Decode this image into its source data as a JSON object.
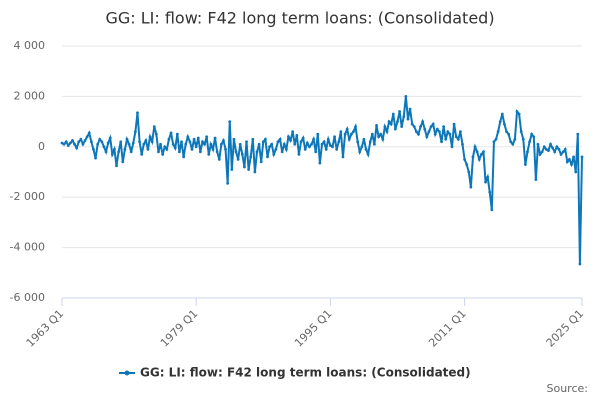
{
  "chart_data": {
    "type": "line",
    "title": "GG: LI: flow: F42 long term loans: (Consolidated)",
    "categories": [
      "1963 Q1",
      null,
      null,
      null,
      null,
      null,
      null,
      null,
      null,
      null,
      null,
      null,
      null,
      null,
      null,
      null,
      null,
      null,
      null,
      null,
      null,
      null,
      null,
      null,
      null,
      null,
      null,
      null,
      null,
      null,
      null,
      null,
      null,
      null,
      null,
      null,
      null,
      null,
      null,
      null,
      null,
      null,
      null,
      null,
      null,
      null,
      null,
      null,
      null,
      null,
      null,
      null,
      null,
      null,
      null,
      null,
      null,
      null,
      null,
      null,
      null,
      null,
      null,
      null,
      "1979 Q1",
      null,
      null,
      null,
      null,
      null,
      null,
      null,
      null,
      null,
      null,
      null,
      null,
      null,
      null,
      null,
      null,
      null,
      null,
      null,
      null,
      null,
      null,
      null,
      null,
      null,
      null,
      null,
      null,
      null,
      null,
      null,
      null,
      null,
      null,
      null,
      null,
      null,
      null,
      null,
      null,
      null,
      null,
      null,
      null,
      null,
      null,
      null,
      null,
      null,
      null,
      null,
      null,
      null,
      null,
      null,
      null,
      null,
      null,
      null,
      null,
      null,
      null,
      null,
      "1995 Q1",
      null,
      null,
      null,
      null,
      null,
      null,
      null,
      null,
      null,
      null,
      null,
      null,
      null,
      null,
      null,
      null,
      null,
      null,
      null,
      null,
      null,
      null,
      null,
      null,
      null,
      null,
      null,
      null,
      null,
      null,
      null,
      null,
      null,
      null,
      null,
      null,
      null,
      null,
      null,
      null,
      null,
      null,
      null,
      null,
      null,
      null,
      null,
      null,
      null,
      null,
      null,
      null,
      null,
      null,
      null,
      null,
      null,
      null,
      null,
      null,
      null,
      null,
      null,
      "2011 Q1",
      null,
      null,
      null,
      null,
      null,
      null,
      null,
      null,
      null,
      null,
      null,
      null,
      null,
      null,
      null,
      null,
      null,
      null,
      null,
      null,
      null,
      null,
      null,
      null,
      null,
      null,
      null,
      null,
      null,
      null,
      null,
      null,
      null,
      null,
      null,
      null,
      null,
      null,
      null,
      null,
      null,
      null,
      null,
      null,
      null,
      null,
      null,
      null,
      null,
      null,
      null,
      null,
      null,
      null,
      null,
      "2025 Q1"
    ],
    "series": [
      {
        "name": "GG: LI: flow: F42 long term loans: (Consolidated)",
        "color": "#0d77b9",
        "values": [
          150,
          100,
          200,
          50,
          150,
          250,
          100,
          -50,
          200,
          300,
          100,
          250,
          400,
          550,
          200,
          -100,
          -450,
          100,
          300,
          200,
          0,
          -200,
          150,
          350,
          -300,
          -100,
          -750,
          -200,
          200,
          -600,
          -100,
          300,
          100,
          -200,
          150,
          600,
          1350,
          200,
          -300,
          100,
          250,
          -100,
          400,
          200,
          800,
          500,
          -200,
          100,
          -300,
          0,
          -100,
          300,
          550,
          100,
          -50,
          500,
          -200,
          200,
          -400,
          100,
          400,
          200,
          -100,
          300,
          0,
          350,
          -200,
          200,
          100,
          400,
          -300,
          100,
          -100,
          350,
          -200,
          -500,
          100,
          250,
          -100,
          -1450,
          1000,
          -900,
          300,
          -200,
          -500,
          100,
          -300,
          -800,
          200,
          -900,
          -400,
          300,
          -1000,
          -200,
          100,
          -600,
          200,
          300,
          -400,
          0,
          100,
          -300,
          -100,
          200,
          300,
          -200,
          100,
          -100,
          400,
          250,
          600,
          100,
          450,
          -300,
          200,
          350,
          -100,
          150,
          0,
          100,
          300,
          -200,
          500,
          -650,
          100,
          200,
          -100,
          300,
          50,
          0,
          400,
          -100,
          200,
          600,
          -400,
          500,
          700,
          300,
          500,
          600,
          800,
          200,
          -200,
          0,
          300,
          -100,
          -300,
          200,
          500,
          100,
          850,
          400,
          500,
          300,
          800,
          600,
          1000,
          900,
          1300,
          700,
          1000,
          1400,
          800,
          1200,
          2000,
          1100,
          1500,
          900,
          800,
          600,
          500,
          800,
          1000,
          700,
          400,
          600,
          800,
          900,
          500,
          700,
          600,
          200,
          800,
          300,
          600,
          500,
          0,
          900,
          400,
          300,
          600,
          100,
          -500,
          -700,
          -1000,
          -1600,
          -400,
          0,
          -200,
          -500,
          -300,
          -200,
          -1400,
          -1200,
          -1800,
          -2500,
          200,
          300,
          600,
          1000,
          1300,
          900,
          600,
          500,
          200,
          100,
          300,
          1400,
          1300,
          600,
          300,
          -700,
          -200,
          200,
          500,
          400,
          -1300,
          100,
          -300,
          -200,
          0,
          -100,
          -150,
          100,
          -50,
          -200,
          0,
          -100,
          -300,
          -200,
          -100,
          -600,
          -500,
          -700,
          -400,
          -1000,
          500,
          -4650,
          -400
        ]
      }
    ],
    "ylim": [
      -6000,
      4000
    ],
    "yticks": [
      {
        "value": -6000,
        "label": "-6 000"
      },
      {
        "value": -4000,
        "label": "-4 000"
      },
      {
        "value": -2000,
        "label": "-2 000"
      },
      0,
      {
        "value": 2000,
        "label": "2 000"
      },
      {
        "value": 4000,
        "label": "4 000"
      }
    ],
    "grid": true,
    "legend": "bottom",
    "source": "Source:"
  }
}
